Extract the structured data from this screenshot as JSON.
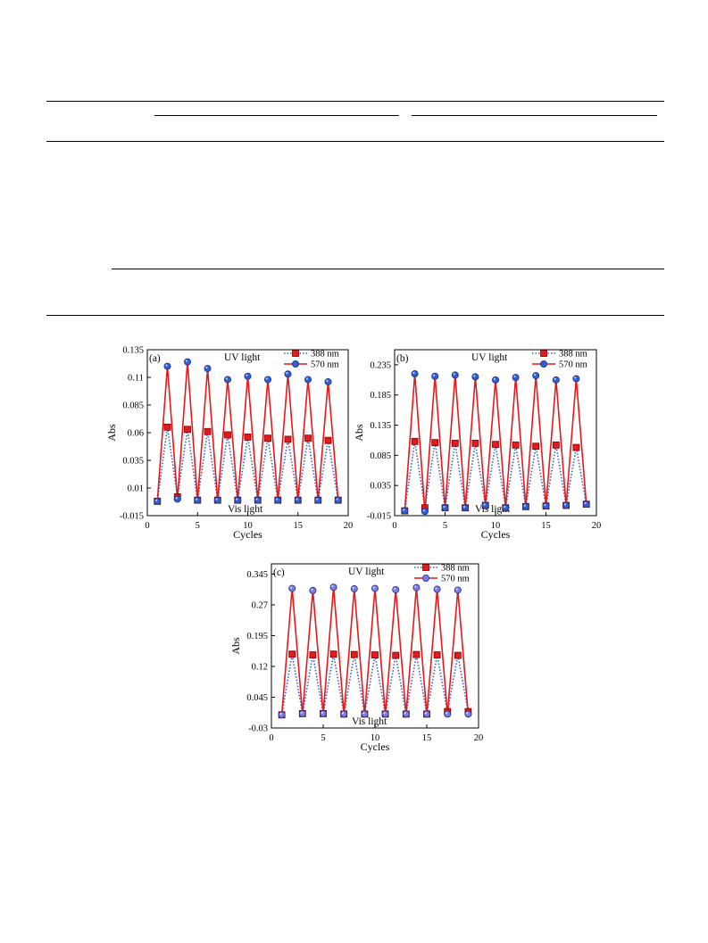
{
  "colors": {
    "red": "#e41a1c",
    "blue": "#2f5fd6",
    "violet": "#7b7be8",
    "dark_red": "#b30000"
  },
  "chart_data": [
    {
      "type": "line",
      "panel_label": "(a)",
      "xlabel": "Cycles",
      "ylabel": "Abs",
      "xlim": [
        0,
        20
      ],
      "ylim": [
        -0.015,
        0.135
      ],
      "xticks": [
        0,
        5,
        10,
        15,
        20
      ],
      "yticks": [
        -0.015,
        0.01,
        0.035,
        0.06,
        0.085,
        0.11,
        0.135
      ],
      "ytick_labels": [
        "-0.015",
        "0.01",
        "0.035",
        "0.06",
        "0.085",
        "0.11",
        "0.135"
      ],
      "annotations": [
        "UV light",
        "Vis light"
      ],
      "legend_position": "top-right",
      "x": [
        1,
        2,
        3,
        4,
        5,
        6,
        7,
        8,
        9,
        10,
        11,
        12,
        13,
        14,
        15,
        16,
        17,
        18,
        19
      ],
      "series": [
        {
          "name": "388 nm",
          "style": "dotted",
          "color": "#2f5fd6",
          "marker_color": "#e41a1c",
          "values": [
            -0.002,
            0.065,
            0.002,
            0.063,
            -0.001,
            0.061,
            -0.001,
            0.058,
            -0.001,
            0.056,
            -0.001,
            0.055,
            -0.001,
            0.054,
            -0.001,
            0.055,
            -0.001,
            0.053,
            -0.001
          ]
        },
        {
          "name": "570 nm",
          "style": "solid",
          "color": "#e41a1c",
          "marker_color": "#2f5fd6",
          "values": [
            -0.002,
            0.12,
            0.0,
            0.124,
            -0.001,
            0.118,
            -0.001,
            0.108,
            -0.001,
            0.111,
            -0.001,
            0.108,
            -0.001,
            0.113,
            -0.001,
            0.108,
            -0.001,
            0.106,
            -0.001
          ]
        }
      ]
    },
    {
      "type": "line",
      "panel_label": "(b)",
      "xlabel": "Cycles",
      "ylabel": "Abs",
      "xlim": [
        0,
        20
      ],
      "ylim": [
        -0.015,
        0.26
      ],
      "xticks": [
        0,
        5,
        10,
        15,
        20
      ],
      "yticks": [
        -0.015,
        0.035,
        0.085,
        0.135,
        0.185,
        0.235
      ],
      "ytick_labels": [
        "-0.015",
        "0.035",
        "0.085",
        "0.135",
        "0.185",
        "0.235"
      ],
      "annotations": [
        "UV light",
        "Vis light"
      ],
      "legend_position": "top-right",
      "x": [
        1,
        2,
        3,
        4,
        5,
        6,
        7,
        8,
        9,
        10,
        11,
        12,
        13,
        14,
        15,
        16,
        17,
        18,
        19
      ],
      "series": [
        {
          "name": "388 nm",
          "style": "dotted",
          "color": "#2f5fd6",
          "marker_color": "#e41a1c",
          "values": [
            -0.007,
            0.108,
            -0.002,
            0.106,
            -0.002,
            0.105,
            -0.002,
            0.105,
            0.002,
            0.103,
            -0.002,
            0.102,
            0.0,
            0.1,
            0.001,
            0.102,
            0.002,
            0.098,
            0.004
          ]
        },
        {
          "name": "570 nm",
          "style": "solid",
          "color": "#e41a1c",
          "marker_color": "#2f5fd6",
          "values": [
            -0.007,
            0.22,
            -0.008,
            0.216,
            -0.002,
            0.218,
            -0.002,
            0.215,
            0.002,
            0.21,
            -0.002,
            0.214,
            0.0,
            0.217,
            0.001,
            0.21,
            0.002,
            0.212,
            0.004
          ]
        }
      ]
    },
    {
      "type": "line",
      "panel_label": "(c)",
      "xlabel": "Cycles",
      "ylabel": "Abs",
      "xlim": [
        0,
        20
      ],
      "ylim": [
        -0.03,
        0.37
      ],
      "xticks": [
        0,
        5,
        10,
        15,
        20
      ],
      "yticks": [
        -0.03,
        0.045,
        0.12,
        0.195,
        0.27,
        0.345
      ],
      "ytick_labels": [
        "-0.03",
        "0.045",
        "0.12",
        "0.195",
        "0.27",
        "0.345"
      ],
      "annotations": [
        "UV light",
        "Vis light"
      ],
      "legend_position": "top-right",
      "x": [
        1,
        2,
        3,
        4,
        5,
        6,
        7,
        8,
        9,
        10,
        11,
        12,
        13,
        14,
        15,
        16,
        17,
        18,
        19
      ],
      "series": [
        {
          "name": "388 nm",
          "style": "dotted",
          "color": "#2f5fd6",
          "marker_color": "#e41a1c",
          "values": [
            0.002,
            0.15,
            0.005,
            0.148,
            0.005,
            0.15,
            0.004,
            0.149,
            0.004,
            0.148,
            0.004,
            0.147,
            0.004,
            0.149,
            0.004,
            0.148,
            0.01,
            0.147,
            0.01
          ]
        },
        {
          "name": "570 nm",
          "style": "solid",
          "color": "#e41a1c",
          "marker_color": "#7b7be8",
          "values": [
            0.002,
            0.31,
            0.005,
            0.305,
            0.005,
            0.313,
            0.004,
            0.309,
            0.004,
            0.31,
            0.004,
            0.307,
            0.004,
            0.312,
            0.004,
            0.308,
            0.004,
            0.306,
            0.004
          ]
        }
      ]
    }
  ]
}
